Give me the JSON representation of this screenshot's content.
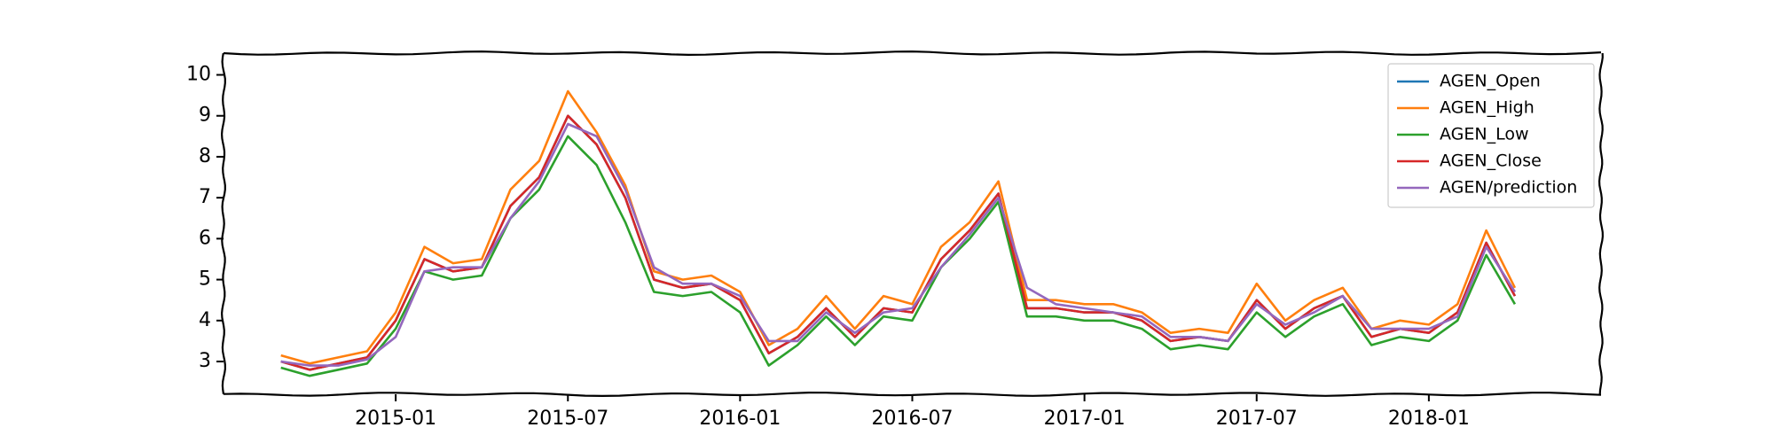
{
  "chart_data": {
    "type": "line",
    "x": [
      "2014-09",
      "2014-10",
      "2014-11",
      "2014-12",
      "2015-01",
      "2015-02",
      "2015-03",
      "2015-04",
      "2015-05",
      "2015-06",
      "2015-07",
      "2015-08",
      "2015-09",
      "2015-10",
      "2015-11",
      "2015-12",
      "2016-01",
      "2016-02",
      "2016-03",
      "2016-04",
      "2016-05",
      "2016-06",
      "2016-07",
      "2016-08",
      "2016-09",
      "2016-10",
      "2016-11",
      "2016-12",
      "2017-01",
      "2017-02",
      "2017-03",
      "2017-04",
      "2017-05",
      "2017-06",
      "2017-07",
      "2017-08",
      "2017-09",
      "2017-10",
      "2017-11",
      "2017-12",
      "2018-01",
      "2018-02",
      "2018-03",
      "2018-04"
    ],
    "series": [
      {
        "name": "AGEN_Open",
        "color": "#1f77b4",
        "values": [
          3.0,
          2.8,
          2.95,
          3.1,
          4.0,
          5.5,
          5.2,
          5.3,
          6.8,
          7.5,
          9.0,
          8.3,
          7.0,
          5.0,
          4.8,
          4.9,
          4.5,
          3.2,
          3.6,
          4.3,
          3.6,
          4.3,
          4.2,
          5.5,
          6.2,
          7.1,
          4.3,
          4.3,
          4.2,
          4.2,
          4.0,
          3.5,
          3.6,
          3.5,
          4.5,
          3.8,
          4.3,
          4.6,
          3.6,
          3.8,
          3.7,
          4.2,
          5.9,
          4.6
        ]
      },
      {
        "name": "AGEN_High",
        "color": "#ff7f0e",
        "values": [
          3.15,
          2.95,
          3.1,
          3.25,
          4.2,
          5.8,
          5.4,
          5.5,
          7.2,
          7.9,
          9.6,
          8.6,
          7.3,
          5.2,
          5.0,
          5.1,
          4.7,
          3.4,
          3.8,
          4.6,
          3.8,
          4.6,
          4.4,
          5.8,
          6.4,
          7.4,
          4.5,
          4.5,
          4.4,
          4.4,
          4.2,
          3.7,
          3.8,
          3.7,
          4.9,
          4.0,
          4.5,
          4.8,
          3.8,
          4.0,
          3.9,
          4.4,
          6.2,
          4.8
        ]
      },
      {
        "name": "AGEN_Low",
        "color": "#2ca02c",
        "values": [
          2.85,
          2.65,
          2.8,
          2.95,
          3.8,
          5.2,
          5.0,
          5.1,
          6.5,
          7.2,
          8.5,
          7.8,
          6.4,
          4.7,
          4.6,
          4.7,
          4.2,
          2.9,
          3.4,
          4.1,
          3.4,
          4.1,
          4.0,
          5.3,
          6.0,
          6.9,
          4.1,
          4.1,
          4.0,
          4.0,
          3.8,
          3.3,
          3.4,
          3.3,
          4.2,
          3.6,
          4.1,
          4.4,
          3.4,
          3.6,
          3.5,
          4.0,
          5.6,
          4.4
        ]
      },
      {
        "name": "AGEN_Close",
        "color": "#d62728",
        "values": [
          3.0,
          2.8,
          2.95,
          3.1,
          4.0,
          5.5,
          5.2,
          5.3,
          6.8,
          7.5,
          9.0,
          8.3,
          7.0,
          5.0,
          4.8,
          4.9,
          4.5,
          3.2,
          3.6,
          4.3,
          3.6,
          4.3,
          4.2,
          5.5,
          6.2,
          7.1,
          4.3,
          4.3,
          4.2,
          4.2,
          4.0,
          3.5,
          3.6,
          3.5,
          4.5,
          3.8,
          4.3,
          4.6,
          3.6,
          3.8,
          3.7,
          4.2,
          5.9,
          4.6
        ]
      },
      {
        "name": "AGEN/prediction",
        "color": "#9467bd",
        "values": [
          3.0,
          2.9,
          2.9,
          3.05,
          3.6,
          5.2,
          5.3,
          5.3,
          6.5,
          7.4,
          8.8,
          8.5,
          7.2,
          5.3,
          4.9,
          4.9,
          4.6,
          3.5,
          3.5,
          4.2,
          3.7,
          4.2,
          4.3,
          5.3,
          6.1,
          7.0,
          4.8,
          4.4,
          4.3,
          4.2,
          4.1,
          3.6,
          3.6,
          3.5,
          4.4,
          3.9,
          4.2,
          4.6,
          3.8,
          3.8,
          3.8,
          4.1,
          5.8,
          4.7
        ]
      }
    ],
    "xlim": [
      "2014-07",
      "2018-07"
    ],
    "xticks": [
      "2015-01",
      "2015-07",
      "2016-01",
      "2016-07",
      "2017-01",
      "2017-07",
      "2018-01"
    ],
    "ylim": [
      2.2,
      10.53
    ],
    "yticks": [
      3,
      4,
      5,
      6,
      7,
      8,
      9,
      10
    ],
    "legend": "upper right"
  }
}
